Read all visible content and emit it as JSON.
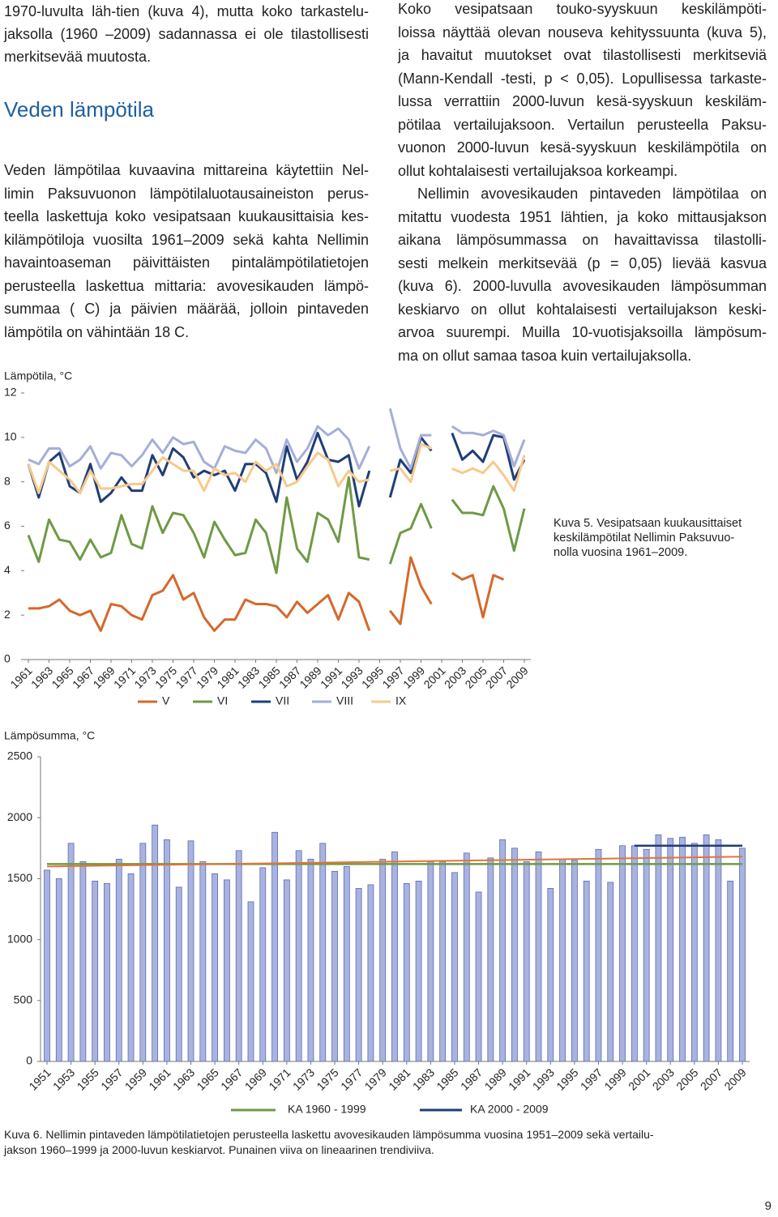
{
  "text": {
    "left_intro": [
      "1970-luvulta läh-tien (kuva 4), mutta koko tarkastelu-",
      "jaksolla (1960 –2009) sadannassa ei ole tilastollisesti",
      "merkitsevää muutosta."
    ],
    "heading": "Veden lämpötila",
    "left_paragraph": [
      "Veden lämpötilaa kuvaavina mittareina käytettiin Nel-",
      "limin Paksuvuonon lämpötilaluotausaineiston perus-",
      "teella laskettuja koko vesipatsaan kuukausittaisia kes-",
      "kilämpötiloja vuosilta 1961–2009 sekä kahta Nellimin",
      "havaintoaseman päivittäisten pintalämpötilatietojen",
      "perusteella laskettua mittaria: avovesikauden lämpö-",
      "summaa ( C) ja päivien määrää, jolloin pintaveden",
      "lämpötila on vähintään 18 C."
    ],
    "right_paragraph_1": [
      "Koko vesipatsaan touko-syyskuun keskilämpöti-",
      "loissa näyttää olevan nouseva kehityssuunta (kuva 5),",
      "ja havaitut muutokset ovat tilastollisesti merkitseviä",
      "(Mann-Kendall -testi, p < 0,05). Lopullisessa tarkaste-",
      "lussa verrattiin 2000-luvun kesä-syyskuun keskiläm-",
      "pötilaa vertailujaksoon. Vertailun perusteella Paksu-",
      "vuonon 2000-luvun kesä-syyskuun keskilämpötila on",
      "ollut kohtalaisesti vertailujaksoa korkeampi."
    ],
    "right_paragraph_2": [
      "Nellimin avovesikauden pintaveden lämpötilaa on",
      "mitattu vuodesta 1951 lähtien, ja koko mittausjakson",
      "aikana lämpösummassa on havaittavissa tilastolli-",
      "sesti melkein merkitsevää (p = 0,05) lievää kasvua",
      "(kuva 6). 2000-luvulla avovesikauden lämpösumman",
      "keskiarvo on ollut kohtalaisesti vertailujakson keski-",
      "arvoa suurempi. Muilla 10-vuotisjaksoilla lämpösum-",
      "ma on ollut samaa tasoa kuin vertailujaksolla."
    ],
    "caption_5": [
      "Kuva 5. Vesipatsaan kuukausittaiset",
      "keskilämpötilat Nellimin Paksuvuo-",
      "nolla vuosina 1961–2009."
    ],
    "caption_6": [
      "Kuva 6. Nellimin pintaveden lämpötilatietojen perusteella laskettu avovesikauden lämpösumma  vuosina 1951–2009 sekä vertailu-",
      "jakson 1960–1999 ja 2000-luvun keskiarvot. Punainen viiva on lineaarinen trendiviiva."
    ],
    "page_number": "9"
  },
  "chart_data": [
    {
      "type": "line",
      "y_label": "Lämpötila, °C",
      "x": [
        1961,
        1962,
        1963,
        1964,
        1965,
        1966,
        1967,
        1968,
        1969,
        1970,
        1971,
        1972,
        1973,
        1974,
        1975,
        1976,
        1977,
        1978,
        1979,
        1980,
        1981,
        1982,
        1983,
        1984,
        1985,
        1986,
        1987,
        1988,
        1989,
        1990,
        1991,
        1992,
        1993,
        1994,
        1995,
        1996,
        1997,
        1998,
        1999,
        2000,
        2001,
        2002,
        2003,
        2004,
        2005,
        2006,
        2007,
        2008,
        2009
      ],
      "xlim": [
        1961,
        2009
      ],
      "xticks": [
        1961,
        1963,
        1965,
        1967,
        1969,
        1971,
        1973,
        1975,
        1977,
        1979,
        1981,
        1983,
        1985,
        1987,
        1989,
        1991,
        1993,
        1995,
        1997,
        1999,
        2001,
        2003,
        2005,
        2007,
        2009
      ],
      "ylim": [
        0,
        12
      ],
      "yticks": [
        0,
        2,
        4,
        6,
        8,
        10,
        12
      ],
      "series": [
        {
          "name": "V",
          "color": "#d4692b",
          "values": [
            2.3,
            2.3,
            2.4,
            2.7,
            2.2,
            2.0,
            2.2,
            1.3,
            2.5,
            2.4,
            2.0,
            1.8,
            2.9,
            3.1,
            3.8,
            2.7,
            3.0,
            1.9,
            1.3,
            1.8,
            1.8,
            2.7,
            2.5,
            2.5,
            2.4,
            1.9,
            2.6,
            2.1,
            2.5,
            2.9,
            1.8,
            3.0,
            2.6,
            1.3,
            null,
            2.2,
            1.6,
            4.6,
            3.3,
            2.5,
            null,
            3.9,
            3.6,
            3.8,
            1.9,
            3.8,
            3.6,
            null,
            null
          ]
        },
        {
          "name": "VI",
          "color": "#6f9a45",
          "values": [
            5.6,
            4.4,
            6.3,
            5.4,
            5.3,
            4.5,
            5.4,
            4.6,
            4.8,
            6.5,
            5.2,
            5.0,
            6.9,
            5.7,
            6.6,
            6.5,
            5.7,
            4.6,
            6.2,
            5.4,
            4.7,
            4.8,
            6.3,
            5.7,
            3.9,
            7.3,
            5.0,
            4.4,
            6.6,
            6.3,
            5.3,
            8.2,
            4.6,
            4.5,
            null,
            4.3,
            5.7,
            5.9,
            7.0,
            5.9,
            null,
            7.2,
            6.6,
            6.6,
            6.5,
            7.8,
            6.8,
            4.9,
            6.8
          ]
        },
        {
          "name": "VII",
          "color": "#1f3e78",
          "values": [
            8.8,
            7.3,
            8.9,
            9.3,
            7.8,
            7.5,
            8.8,
            7.1,
            7.5,
            8.2,
            7.6,
            7.6,
            9.2,
            8.3,
            9.5,
            9.1,
            8.2,
            8.5,
            8.3,
            8.5,
            7.6,
            8.8,
            8.8,
            8.4,
            7.1,
            9.6,
            8.1,
            8.9,
            10.2,
            9.0,
            8.9,
            9.2,
            6.9,
            8.5,
            null,
            7.3,
            9.0,
            8.4,
            10.0,
            9.4,
            null,
            10.2,
            9.0,
            9.4,
            8.9,
            10.1,
            10.0,
            8.1,
            9.0
          ]
        },
        {
          "name": "VIII",
          "color": "#a5aed8",
          "values": [
            9.0,
            8.8,
            9.5,
            9.5,
            8.7,
            9.0,
            9.6,
            8.6,
            9.3,
            9.2,
            8.7,
            9.2,
            9.9,
            9.3,
            10.0,
            9.7,
            9.8,
            8.9,
            8.6,
            9.6,
            9.4,
            9.3,
            9.9,
            9.5,
            8.4,
            9.9,
            8.9,
            9.5,
            10.5,
            10.1,
            10.4,
            9.9,
            8.6,
            9.6,
            null,
            11.3,
            9.5,
            8.6,
            10.1,
            10.1,
            null,
            10.5,
            10.2,
            10.2,
            10.1,
            10.3,
            10.1,
            8.7,
            9.9
          ]
        },
        {
          "name": "IX",
          "color": "#f7c98a",
          "values": [
            8.8,
            7.5,
            8.9,
            8.5,
            8.1,
            7.5,
            8.5,
            7.7,
            7.7,
            7.8,
            7.9,
            7.9,
            8.5,
            9.1,
            8.8,
            8.5,
            8.5,
            7.6,
            8.6,
            8.3,
            8.4,
            8.0,
            8.9,
            8.5,
            8.8,
            7.8,
            8.0,
            8.7,
            9.3,
            9.0,
            7.8,
            8.5,
            8.0,
            8.1,
            null,
            8.5,
            8.6,
            8.0,
            9.7,
            9.5,
            null,
            8.6,
            8.4,
            8.6,
            8.4,
            8.9,
            8.3,
            7.6,
            9.2
          ]
        }
      ]
    },
    {
      "type": "bar",
      "y_label": "Lämpösumma, °C",
      "x": [
        1951,
        1952,
        1953,
        1954,
        1955,
        1956,
        1957,
        1958,
        1959,
        1960,
        1961,
        1962,
        1963,
        1964,
        1965,
        1966,
        1967,
        1968,
        1969,
        1970,
        1971,
        1972,
        1973,
        1974,
        1975,
        1976,
        1977,
        1978,
        1979,
        1980,
        1981,
        1982,
        1983,
        1984,
        1985,
        1986,
        1987,
        1988,
        1989,
        1990,
        1991,
        1992,
        1993,
        1994,
        1995,
        1996,
        1997,
        1998,
        1999,
        2000,
        2001,
        2002,
        2003,
        2004,
        2005,
        2006,
        2007,
        2008,
        2009
      ],
      "xlim": [
        1951,
        2009
      ],
      "xticks": [
        1951,
        1953,
        1955,
        1957,
        1959,
        1961,
        1963,
        1965,
        1967,
        1969,
        1971,
        1973,
        1975,
        1977,
        1979,
        1981,
        1983,
        1985,
        1987,
        1989,
        1991,
        1993,
        1995,
        1997,
        1999,
        2001,
        2003,
        2005,
        2007,
        2009
      ],
      "ylim": [
        0,
        2500
      ],
      "yticks": [
        0,
        500,
        1000,
        1500,
        2000,
        2500
      ],
      "color": "#a9b3e0",
      "values": [
        1570,
        1500,
        1790,
        1640,
        1480,
        1460,
        1660,
        1540,
        1790,
        1940,
        1820,
        1430,
        1810,
        1640,
        1540,
        1490,
        1730,
        1310,
        1590,
        1880,
        1490,
        1730,
        1660,
        1790,
        1560,
        1600,
        1420,
        1450,
        1660,
        1720,
        1460,
        1480,
        1640,
        1640,
        1550,
        1710,
        1390,
        1670,
        1820,
        1750,
        1640,
        1720,
        1420,
        1660,
        1650,
        1480,
        1740,
        1470,
        1770,
        1770,
        1740,
        1860,
        1830,
        1840,
        1790,
        1860,
        1820,
        1480,
        1750
      ],
      "reference_lines": [
        {
          "name": "KA 1960 - 1999",
          "color": "#6f9a45",
          "x": [
            1951,
            2009
          ],
          "values": [
            1620,
            1620
          ]
        },
        {
          "name": "KA 2000 - 2009",
          "color": "#1f3e78",
          "x": [
            2000,
            2009
          ],
          "values": [
            1770,
            1770
          ]
        }
      ],
      "trend": {
        "color": "#e2743a",
        "x": [
          1951,
          2009
        ],
        "values": [
          1600,
          1680
        ]
      }
    }
  ]
}
